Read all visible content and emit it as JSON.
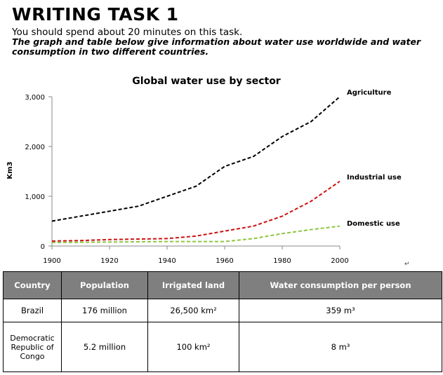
{
  "header": {
    "title": "WRITING TASK 1",
    "instruction": "You should spend about 20 minutes on this task.",
    "description": "The graph and table below give information about water use worldwide and water consumption in two different countries."
  },
  "chart_data": {
    "type": "line",
    "title": "Global water use by sector",
    "xlabel": "",
    "ylabel": "Km3",
    "xlim": [
      1900,
      2000
    ],
    "ylim": [
      0,
      3000
    ],
    "x_ticks": [
      1900,
      1920,
      1940,
      1960,
      1980,
      2000
    ],
    "y_ticks": [
      0,
      1000,
      2000,
      3000
    ],
    "x_tick_labels": [
      "1900",
      "1920",
      "1940",
      "1960",
      "1980",
      "2000"
    ],
    "y_tick_labels": [
      "0",
      "1,000",
      "2,000",
      "3,000"
    ],
    "x": [
      1900,
      1910,
      1920,
      1930,
      1940,
      1950,
      1960,
      1970,
      1980,
      1990,
      2000
    ],
    "series": [
      {
        "name": "Agriculture",
        "color": "#000000",
        "values": [
          500,
          600,
          700,
          800,
          1000,
          1200,
          1600,
          1800,
          2200,
          2500,
          3000
        ]
      },
      {
        "name": "Industrial use",
        "color": "#cc1111",
        "values": [
          100,
          110,
          130,
          140,
          150,
          200,
          300,
          400,
          600,
          900,
          1300
        ]
      },
      {
        "name": "Domestic use",
        "color": "#8cc63f",
        "values": [
          70,
          75,
          80,
          85,
          90,
          90,
          90,
          150,
          250,
          330,
          400
        ]
      }
    ],
    "legend": "inline-right",
    "grid": false
  },
  "table": {
    "headers": [
      "Country",
      "Population",
      "Irrigated land",
      "Water consumption per person"
    ],
    "rows": [
      [
        "Brazil",
        "176 million",
        "26,500 km²",
        "359 m³"
      ],
      [
        "Democratic Republic of Congo",
        "5.2 million",
        "100 km²",
        "8 m³"
      ]
    ]
  },
  "paragraph_mark": "↵"
}
